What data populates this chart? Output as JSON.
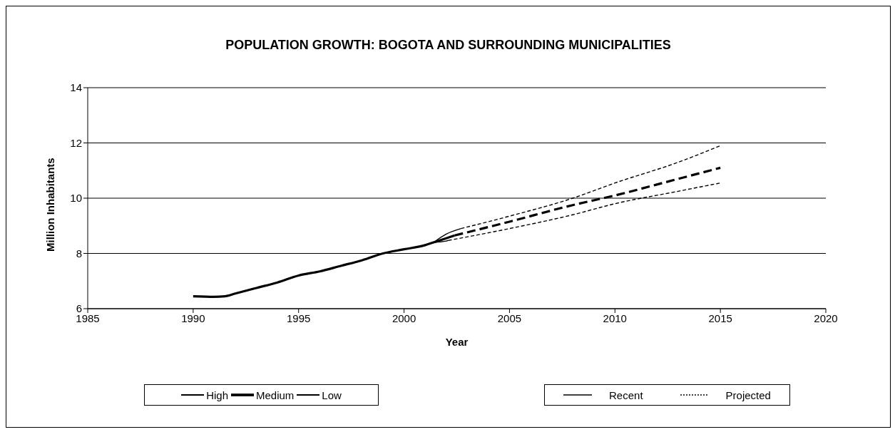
{
  "chart_data": {
    "type": "line",
    "title": "POPULATION GROWTH: BOGOTA AND SURROUNDING MUNICIPALITIES",
    "xlabel": "Year",
    "ylabel": "Million Inhabitants",
    "xlim": [
      1985,
      2020
    ],
    "xticks": [
      1985,
      1990,
      1995,
      2000,
      2005,
      2010,
      2015,
      2020
    ],
    "ylim": [
      6,
      14
    ],
    "yticks": [
      6,
      8,
      10,
      12,
      14
    ],
    "grid": "y",
    "legend": "bottom",
    "marker": "none",
    "series": [
      {
        "name": "High",
        "color": "#000000",
        "line_style": "solid",
        "x": [
          2001.4,
          2002,
          2002.7
        ],
        "values": [
          8.4,
          8.7,
          8.9
        ]
      },
      {
        "name": "Medium",
        "color": "#000000",
        "line_style": "solid",
        "x": [
          1990,
          1991,
          1991.5,
          1992,
          1993,
          1994,
          1995,
          1996,
          1997,
          1998,
          1999,
          2000,
          2001,
          2001.4,
          2002,
          2002.4
        ],
        "values": [
          6.45,
          6.43,
          6.45,
          6.55,
          6.75,
          6.95,
          7.2,
          7.35,
          7.55,
          7.75,
          8.0,
          8.15,
          8.3,
          8.4,
          8.55,
          8.65
        ]
      },
      {
        "name": "Low",
        "color": "#000000",
        "line_style": "solid",
        "x": [
          2001.4,
          2002,
          2002.1
        ],
        "values": [
          8.4,
          8.45,
          8.47
        ]
      },
      {
        "color": "#000000",
        "line_style": "dashed",
        "x": [
          2002.7,
          2005,
          2008,
          2010,
          2013,
          2015
        ],
        "values": [
          8.9,
          9.35,
          10.0,
          10.55,
          11.3,
          11.9
        ]
      },
      {
        "color": "#000000",
        "line_style": "dashed",
        "x": [
          2002.4,
          2005,
          2008,
          2010,
          2013,
          2015
        ],
        "values": [
          8.65,
          9.15,
          9.75,
          10.1,
          10.7,
          11.1
        ]
      },
      {
        "color": "#000000",
        "line_style": "dashed",
        "x": [
          2002.1,
          2005,
          2008,
          2010,
          2013,
          2015
        ],
        "values": [
          8.47,
          8.9,
          9.4,
          9.8,
          10.25,
          10.55
        ]
      }
    ],
    "annotations": [
      "Recent",
      "Projected"
    ]
  }
}
